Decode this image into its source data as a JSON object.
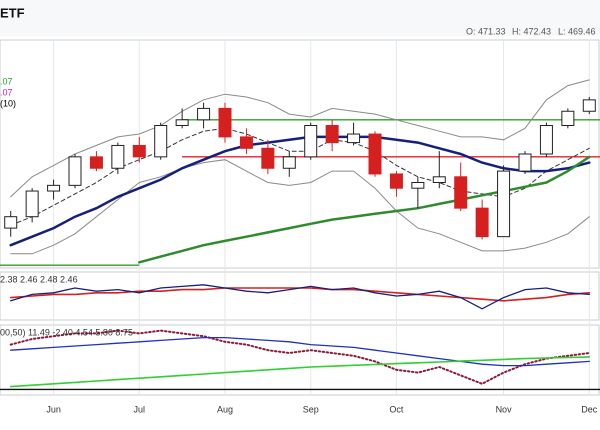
{
  "header": {
    "title": "ETF",
    "open": "O: 471.33",
    "high": "H: 472.43",
    "low": "L: 469.46"
  },
  "chart_data": [
    {
      "type": "candlestick",
      "categories": [
        null,
        null,
        "Jun",
        null,
        null,
        null,
        "Jul",
        null,
        null,
        null,
        "Aug",
        null,
        null,
        null,
        "Sep",
        null,
        null,
        null,
        "Oct",
        null,
        null,
        null,
        null,
        "Nov",
        null,
        null,
        null,
        "Dec"
      ],
      "open": [
        414,
        418,
        427,
        429,
        439,
        435,
        443,
        439,
        450,
        452,
        456,
        446,
        442,
        435,
        439,
        450,
        444,
        447,
        433,
        428,
        430,
        432,
        421,
        411,
        434,
        440,
        450,
        455
      ],
      "high": [
        420,
        428,
        431,
        440,
        441,
        444,
        446,
        451,
        456,
        458,
        458,
        449,
        445,
        441,
        451,
        452,
        451,
        448,
        434,
        432,
        441,
        437,
        424,
        436,
        441,
        451,
        456,
        460
      ],
      "low": [
        411,
        416,
        424,
        428,
        434,
        433,
        437,
        438,
        449,
        449,
        444,
        440,
        433,
        432,
        438,
        441,
        443,
        432,
        425,
        421,
        428,
        420,
        410,
        411,
        433,
        439,
        449,
        454
      ],
      "close": [
        418,
        427,
        429,
        439,
        435,
        443,
        439,
        450,
        452,
        456,
        446,
        442,
        435,
        439,
        450,
        444,
        447,
        433,
        428,
        430,
        432,
        421,
        411,
        434,
        440,
        450,
        455,
        459
      ],
      "up_color": "#222222",
      "down_color": "#d62020",
      "ylim": [
        400,
        480
      ],
      "legend": [
        {
          "label": ".07",
          "color": "#2ca02c"
        },
        {
          "label": ".07",
          "color": "#c020c0"
        },
        {
          "label": "(10)",
          "color": "#000000"
        }
      ],
      "series": [
        {
          "color": "#8a8a8a",
          "values": [
            425,
            432,
            436,
            440,
            443,
            446,
            447,
            450,
            455,
            459,
            461,
            460,
            458,
            454,
            453,
            456,
            455,
            454,
            452,
            450,
            448,
            446,
            446,
            445,
            449,
            459,
            464,
            466
          ]
        },
        {
          "color": "#8a8a8a",
          "values": [
            405,
            405,
            408,
            412,
            418,
            424,
            430,
            432,
            435,
            437,
            438,
            434,
            430,
            429,
            430,
            434,
            434,
            428,
            420,
            414,
            412,
            409,
            406,
            406,
            407,
            409,
            412,
            418
          ]
        },
        {
          "color": "#333333",
          "dashed": true,
          "values": [
            415,
            418,
            422,
            426,
            430,
            435,
            438,
            441,
            445,
            448,
            449,
            447,
            444,
            441,
            441,
            445,
            444,
            441,
            436,
            432,
            430,
            427,
            426,
            425,
            428,
            434,
            438,
            442
          ]
        },
        {
          "color": "#15207a",
          "width": 2.5,
          "values": [
            408,
            411,
            414,
            418,
            421,
            425,
            428,
            431,
            435,
            438,
            441,
            443,
            444,
            445,
            446,
            446,
            446,
            446,
            445,
            444,
            442,
            440,
            437,
            435,
            434,
            434,
            435,
            437
          ]
        },
        {
          "color": "#2e8b2e",
          "width": 2.5,
          "values": [
            null,
            null,
            null,
            null,
            null,
            null,
            402,
            404,
            406,
            408,
            409.5,
            411,
            412.5,
            414,
            415.5,
            417,
            418,
            419,
            420,
            421,
            422.5,
            424,
            425.5,
            427,
            428.5,
            430,
            434,
            439
          ]
        }
      ],
      "hlines": [
        {
          "value": 452,
          "color": "#2ca02c",
          "start": 8,
          "end": 27
        },
        {
          "value": 439,
          "color": "#e8202a",
          "start": 8,
          "end": 27
        },
        {
          "value": 401,
          "color": "#2ca02c",
          "start": 0,
          "end": 6
        }
      ]
    },
    {
      "type": "line",
      "label": "2.38 2.46 2.48 2.46",
      "ylim": [
        2.3,
        2.6
      ],
      "series": [
        {
          "color": "#d62020",
          "width": 1.6,
          "values": [
            2.44,
            2.45,
            2.46,
            2.46,
            2.47,
            2.47,
            2.48,
            2.48,
            2.49,
            2.49,
            2.5,
            2.5,
            2.5,
            2.5,
            2.5,
            2.49,
            2.49,
            2.48,
            2.47,
            2.46,
            2.45,
            2.44,
            2.43,
            2.42,
            2.43,
            2.44,
            2.46,
            2.47
          ]
        },
        {
          "color": "#15207a",
          "width": 1.3,
          "values": [
            2.42,
            2.46,
            2.47,
            2.5,
            2.48,
            2.49,
            2.47,
            2.5,
            2.51,
            2.52,
            2.5,
            2.48,
            2.47,
            2.49,
            2.51,
            2.49,
            2.5,
            2.47,
            2.45,
            2.46,
            2.48,
            2.44,
            2.37,
            2.44,
            2.49,
            2.5,
            2.47,
            2.46
          ]
        }
      ]
    },
    {
      "type": "line",
      "label": "00,50) 11.49 -2.40 4.54 5.80 8.75",
      "ylim": [
        -10,
        15
      ],
      "series": [
        {
          "color": "#8b1a3a",
          "dotted": true,
          "width": 2,
          "values": [
            8,
            10,
            11,
            12,
            12,
            13,
            12,
            13,
            12,
            11,
            9,
            8,
            6,
            5,
            6,
            5,
            4,
            2,
            -1,
            -2,
            0,
            -3,
            -6,
            -2,
            1,
            3,
            4,
            5
          ]
        },
        {
          "color": "#2030c0",
          "width": 1.3,
          "values": [
            6,
            6.5,
            7,
            7.5,
            8,
            8.5,
            9,
            9.5,
            10,
            10.5,
            10.5,
            10,
            9.5,
            9,
            8,
            7.5,
            7,
            6,
            5,
            4,
            3,
            2,
            1,
            0.5,
            0.5,
            1,
            1.5,
            2
          ]
        },
        {
          "color": "#30d030",
          "width": 1.6,
          "values": [
            -7,
            -6.5,
            -6,
            -5.5,
            -5,
            -4.5,
            -4,
            -3.5,
            -3,
            -2.5,
            -2,
            -1.5,
            -1,
            -0.5,
            0,
            0.3,
            0.6,
            0.9,
            1.2,
            1.5,
            1.8,
            2.1,
            2.4,
            2.7,
            3,
            3.2,
            3.4,
            3.6
          ]
        }
      ],
      "hlines": [
        {
          "value": -8,
          "color": "#111111",
          "start": 0,
          "end": 27
        }
      ]
    }
  ]
}
